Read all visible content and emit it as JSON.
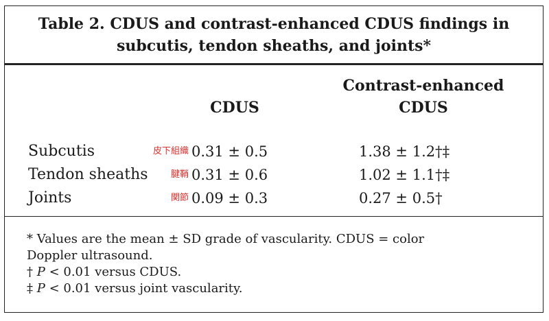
{
  "table": {
    "title_line1": "Table 2.  CDUS and contrast-enhanced CDUS findings in",
    "title_line2": "subcutis, tendon sheaths, and joints*",
    "columns": {
      "cdus": "CDUS",
      "ce_line1": "Contrast-enhanced",
      "ce_line2": "CDUS"
    },
    "rows": [
      {
        "label": "Subcutis",
        "annotation": "皮下組織",
        "cdus": "0.31 ± 0.5",
        "ce": "1.38 ± 1.2†‡"
      },
      {
        "label": "Tendon sheaths",
        "annotation": "腱鞘",
        "cdus": "0.31 ± 0.6",
        "ce": "1.02 ± 1.1†‡"
      },
      {
        "label": "Joints",
        "annotation": "関節",
        "cdus": "0.09 ± 0.3",
        "ce": "0.27 ± 0.5†"
      }
    ],
    "footnotes": {
      "n1_line1": "* Values are the mean ± SD grade of vascularity. CDUS = color",
      "n1_line2": "Doppler ultrasound.",
      "n2_symbol": "†",
      "n2_p": "P",
      "n2_rest": " < 0.01 versus CDUS.",
      "n3_symbol": "‡",
      "n3_p": "P",
      "n3_rest": " < 0.01 versus joint vascularity."
    }
  }
}
